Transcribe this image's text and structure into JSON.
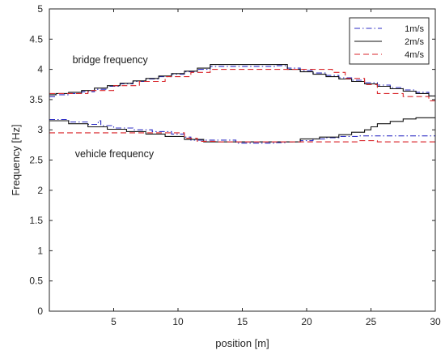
{
  "chart_data": {
    "type": "line",
    "title": "",
    "xlabel": "position [m]",
    "ylabel": "Frequency [Hz]",
    "xlim": [
      0,
      30
    ],
    "ylim": [
      0,
      5
    ],
    "xticks": [
      5,
      10,
      15,
      20,
      25,
      30
    ],
    "yticks": [
      0,
      0.5,
      1,
      1.5,
      2,
      2.5,
      3,
      3.5,
      4,
      4.5,
      5
    ],
    "grid": false,
    "legend_position": "top-right",
    "annotations": [
      {
        "text": "bridge frequency",
        "x": 1.8,
        "y": 4.1
      },
      {
        "text": "vehicle frequency",
        "x": 2.0,
        "y": 2.55
      }
    ],
    "series": [
      {
        "name": "1m/s",
        "color": "#2b2bc4",
        "dash": "dashdot",
        "groups": [
          {
            "label": "bridge frequency",
            "x": [
              0,
              0.5,
              1.5,
              2.5,
              3.5,
              4.5,
              5.5,
              6.5,
              7.5,
              8.5,
              9.5,
              10.5,
              11.5,
              12.5,
              17.5,
              18.5,
              19.5,
              20.5,
              21.5,
              22.5,
              23.5,
              24.5,
              25.5,
              26.5,
              27.5,
              28.5,
              29.5,
              30
            ],
            "y": [
              3.55,
              3.58,
              3.6,
              3.63,
              3.67,
              3.72,
              3.76,
              3.8,
              3.84,
              3.88,
              3.92,
              3.96,
              4.0,
              4.05,
              4.06,
              4.02,
              3.98,
              3.94,
              3.9,
              3.86,
              3.82,
              3.78,
              3.74,
              3.7,
              3.66,
              3.62,
              3.56,
              3.55
            ]
          },
          {
            "label": "vehicle frequency",
            "x": [
              0,
              1.5,
              3.0,
              3.8,
              4.0,
              5.0,
              6.5,
              8.0,
              9.5,
              10.5,
              11.0,
              14.5,
              17.5,
              18.5,
              19.5,
              20.5,
              21.5,
              22.5,
              24.0,
              26.0,
              28.0,
              30
            ],
            "y": [
              3.17,
              3.13,
              3.09,
              3.15,
              3.07,
              3.03,
              3.0,
              2.97,
              2.93,
              2.88,
              2.83,
              2.78,
              2.79,
              2.8,
              2.82,
              2.85,
              2.87,
              2.89,
              2.9,
              2.9,
              2.9,
              2.9
            ]
          }
        ]
      },
      {
        "name": "2m/s",
        "color": "#111111",
        "dash": "solid",
        "groups": [
          {
            "label": "bridge frequency",
            "x": [
              0,
              0.5,
              1.5,
              2.5,
              3.5,
              4.5,
              5.5,
              6.5,
              7.5,
              8.5,
              9.5,
              10.5,
              11.5,
              12.5,
              18.5,
              19.5,
              20.5,
              21.5,
              22.5,
              23.5,
              24.5,
              25.5,
              26.5,
              27.5,
              28.5,
              29.5,
              30
            ],
            "y": [
              3.58,
              3.6,
              3.62,
              3.65,
              3.69,
              3.73,
              3.77,
              3.81,
              3.85,
              3.89,
              3.93,
              3.97,
              4.02,
              4.08,
              4.0,
              3.96,
              3.92,
              3.88,
              3.84,
              3.8,
              3.76,
              3.72,
              3.68,
              3.64,
              3.6,
              3.56,
              3.56
            ]
          },
          {
            "label": "vehicle frequency",
            "x": [
              0,
              1.5,
              3.0,
              4.5,
              6.0,
              7.5,
              9.0,
              10.5,
              12.0,
              17.5,
              19.5,
              21.0,
              22.5,
              23.5,
              24.5,
              25.0,
              25.5,
              26.5,
              27.5,
              28.5,
              30
            ],
            "y": [
              3.15,
              3.1,
              3.05,
              3.01,
              2.97,
              2.93,
              2.89,
              2.84,
              2.8,
              2.8,
              2.85,
              2.88,
              2.92,
              2.96,
              3.0,
              3.05,
              3.1,
              3.14,
              3.18,
              3.2,
              3.2
            ]
          }
        ]
      },
      {
        "name": "4m/s",
        "color": "#d9262b",
        "dash": "dashed",
        "groups": [
          {
            "label": "bridge frequency",
            "x": [
              0,
              3.0,
              5.0,
              7.0,
              9.0,
              11.0,
              12.5,
              21.0,
              22.0,
              23.0,
              24.5,
              25.5,
              27.5,
              29.5,
              30
            ],
            "y": [
              3.6,
              3.65,
              3.73,
              3.8,
              3.88,
              3.95,
              4.0,
              4.0,
              3.95,
              3.85,
              3.75,
              3.6,
              3.55,
              3.48,
              3.48
            ]
          },
          {
            "label": "vehicle frequency",
            "x": [
              0,
              3.5,
              10.5,
              11.5,
              13.0,
              21.5,
              24.0,
              25.5,
              30
            ],
            "y": [
              2.95,
              2.95,
              2.86,
              2.81,
              2.8,
              2.8,
              2.82,
              2.8,
              2.8
            ]
          }
        ]
      }
    ]
  }
}
